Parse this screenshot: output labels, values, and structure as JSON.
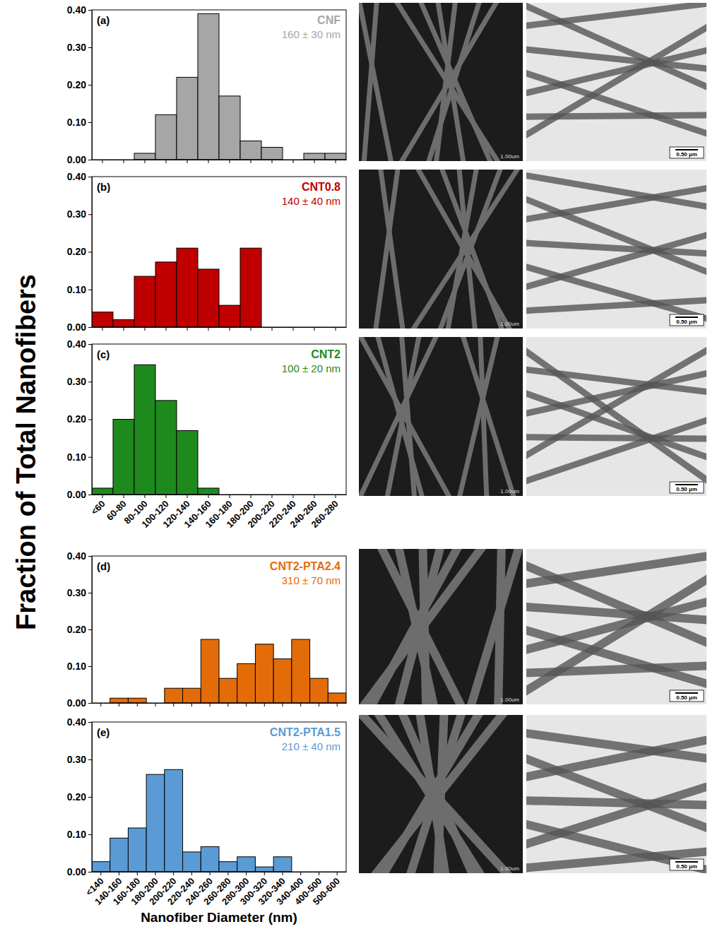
{
  "figure": {
    "y_label": "Fraction of Total Nanofibers",
    "x_label": "Nanofiber Diameter (nm)"
  },
  "chart_data": [
    {
      "type": "bar",
      "panel_label": "(a)",
      "title": "CNF",
      "subtitle": "160 ± 30 nm",
      "color": "#a6a6a6",
      "categories": [
        "<60",
        "60-80",
        "80-100",
        "100-120",
        "120-140",
        "140-160",
        "160-180",
        "180-200",
        "200-220",
        "220-240",
        "240-260",
        "260-280"
      ],
      "values": [
        0,
        0,
        0.017,
        0.12,
        0.22,
        0.39,
        0.17,
        0.05,
        0.033,
        0,
        0.017,
        0.017
      ],
      "ylim": [
        0,
        0.4
      ],
      "yticks": [
        {
          "value": 0,
          "label": "0.00"
        },
        {
          "value": 0.1,
          "label": "0.10"
        },
        {
          "value": 0.2,
          "label": "0.20"
        },
        {
          "value": 0.3,
          "label": "0.30"
        },
        {
          "value": 0.4,
          "label": "0.40"
        }
      ],
      "tick_labels": "y"
    },
    {
      "type": "bar",
      "panel_label": "(b)",
      "title": "CNT0.8",
      "subtitle": "140 ± 40 nm",
      "color": "#c00000",
      "categories": [
        "<60",
        "60-80",
        "80-100",
        "100-120",
        "120-140",
        "140-160",
        "160-180",
        "180-200",
        "200-220",
        "220-240",
        "240-260",
        "260-280"
      ],
      "values": [
        0.04,
        0.02,
        0.135,
        0.173,
        0.21,
        0.154,
        0.058,
        0.21,
        0,
        0,
        0,
        0
      ],
      "ylim": [
        0,
        0.4
      ],
      "yticks": [
        {
          "value": 0,
          "label": "0.00"
        },
        {
          "value": 0.1,
          "label": "0.10"
        },
        {
          "value": 0.2,
          "label": "0.20"
        },
        {
          "value": 0.3,
          "label": "0.30"
        },
        {
          "value": 0.4,
          "label": "0.40"
        }
      ],
      "tick_labels": "y"
    },
    {
      "type": "bar",
      "panel_label": "(c)",
      "title": "CNT2",
      "subtitle": "100 ± 20 nm",
      "color": "#1e8a1e",
      "categories": [
        "<60",
        "60-80",
        "80-100",
        "100-120",
        "120-140",
        "140-160",
        "160-180",
        "180-200",
        "200-220",
        "220-240",
        "240-260",
        "260-280"
      ],
      "values": [
        0.017,
        0.2,
        0.345,
        0.25,
        0.17,
        0.017,
        0,
        0,
        0,
        0,
        0,
        0
      ],
      "ylim": [
        0,
        0.4
      ],
      "yticks": [
        {
          "value": 0,
          "label": "0.00"
        },
        {
          "value": 0.1,
          "label": "0.10"
        },
        {
          "value": 0.2,
          "label": "0.20"
        },
        {
          "value": 0.3,
          "label": "0.30"
        },
        {
          "value": 0.4,
          "label": "0.40"
        }
      ],
      "tick_labels": true
    },
    {
      "type": "bar",
      "panel_label": "(d)",
      "title": "CNT2-PTA2.4",
      "subtitle": "310 ± 70 nm",
      "color": "#e36c09",
      "categories": [
        "<140",
        "140-160",
        "160-180",
        "180-200",
        "200-220",
        "220-240",
        "240-260",
        "260-280",
        "280-300",
        "300-320",
        "320-340",
        "340-400",
        "400-500",
        "500-600"
      ],
      "values": [
        0,
        0.013,
        0.013,
        0,
        0.04,
        0.04,
        0.173,
        0.067,
        0.107,
        0.16,
        0.12,
        0.173,
        0.067,
        0.027
      ],
      "ylim": [
        0,
        0.4
      ],
      "yticks": [
        {
          "value": 0,
          "label": "0.00"
        },
        {
          "value": 0.1,
          "label": "0.10"
        },
        {
          "value": 0.2,
          "label": "0.20"
        },
        {
          "value": 0.3,
          "label": "0.30"
        },
        {
          "value": 0.4,
          "label": "0.40"
        }
      ],
      "tick_labels": "y"
    },
    {
      "type": "bar",
      "panel_label": "(e)",
      "title": "CNT2-PTA1.5",
      "subtitle": "210 ± 40 nm",
      "color": "#5b9bd5",
      "categories": [
        "<140",
        "140-160",
        "160-180",
        "180-200",
        "200-220",
        "220-240",
        "240-260",
        "260-280",
        "280-300",
        "300-320",
        "320-340",
        "340-400",
        "400-500",
        "500-600"
      ],
      "values": [
        0.027,
        0.09,
        0.117,
        0.26,
        0.273,
        0.053,
        0.067,
        0.027,
        0.04,
        0.013,
        0.04,
        0,
        0,
        0
      ],
      "ylim": [
        0,
        0.4
      ],
      "yticks": [
        {
          "value": 0,
          "label": "0.00"
        },
        {
          "value": 0.1,
          "label": "0.10"
        },
        {
          "value": 0.2,
          "label": "0.20"
        },
        {
          "value": 0.3,
          "label": "0.30"
        },
        {
          "value": 0.4,
          "label": "0.40"
        }
      ],
      "tick_labels": true
    }
  ],
  "micrographs": [
    {
      "sem_scale_label": "1.00um",
      "tem_scale_label": "0.50 µm"
    },
    {
      "sem_scale_label": "1.00um",
      "tem_scale_label": "0.50 µm"
    },
    {
      "sem_scale_label": "1.00um",
      "tem_scale_label": "0.50 µm"
    },
    {
      "sem_scale_label": "1.00um",
      "tem_scale_label": "0.50 µm"
    },
    {
      "sem_scale_label": "1.00um",
      "tem_scale_label": "0.50 µm"
    }
  ]
}
